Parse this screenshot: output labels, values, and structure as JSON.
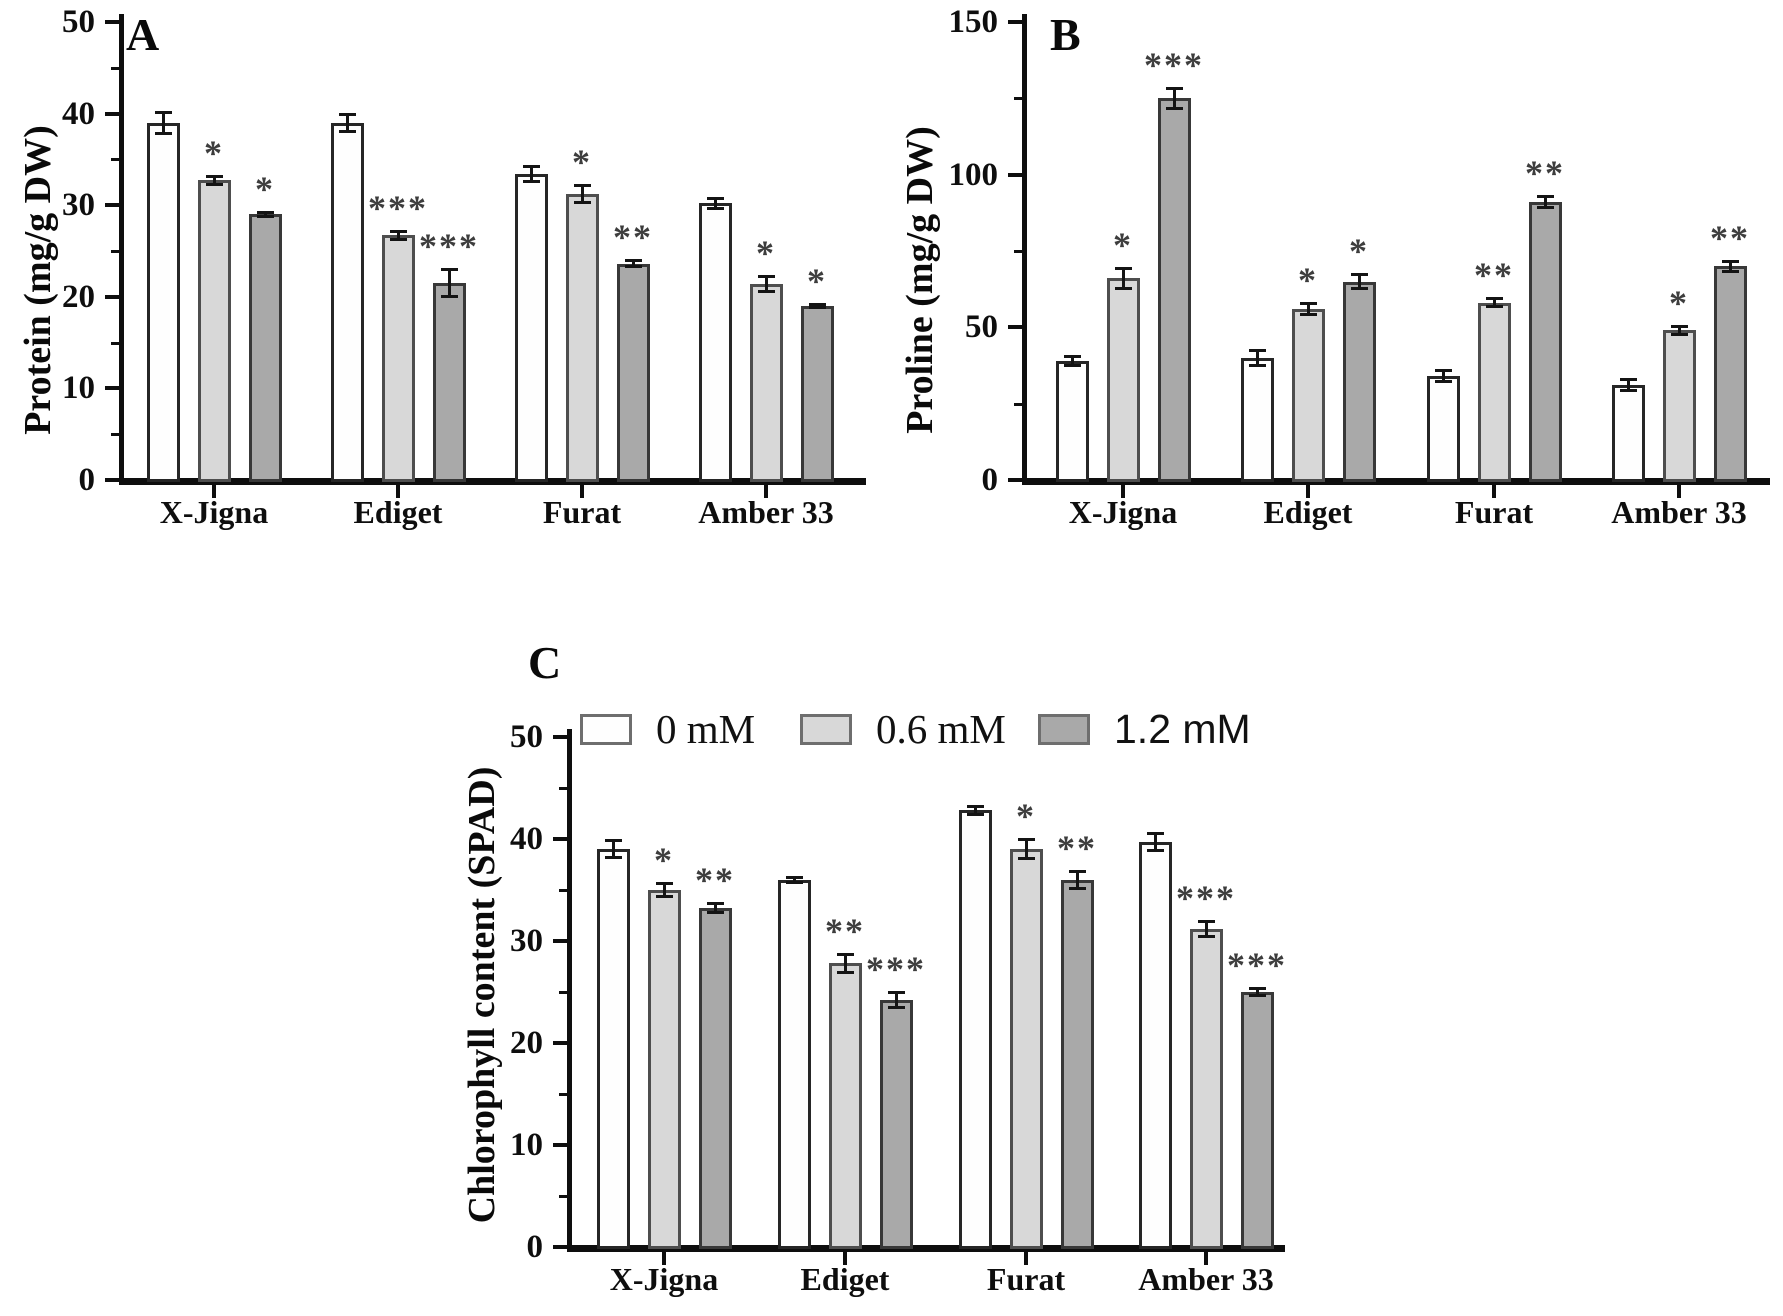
{
  "colors": {
    "bar_0mM": "#fefefe",
    "bar_06mM": "#d8d8d8",
    "bar_12mM": "#a9a9a9",
    "bar_border": "#2b2b2b",
    "axis": "#0e0e0e",
    "stars": "#3d3d3d"
  },
  "legend": {
    "items": [
      {
        "label": "0 mM",
        "color": "#fefefe"
      },
      {
        "label": "0.6 mM",
        "color": "#d8d8d8"
      },
      {
        "label": "1.2 mM",
        "color": "#a9a9a9"
      }
    ]
  },
  "chart_data": [
    {
      "panel_label": "A",
      "type": "bar",
      "ylabel": "Protein (mg/g DW)",
      "ylim": [
        0,
        50
      ],
      "yticks": [
        0,
        10,
        20,
        30,
        40,
        50
      ],
      "minor_tick_step": 5,
      "grid": false,
      "legend_position": "none",
      "categories": [
        "X-Jigna",
        "Ediget",
        "Furat",
        "Amber 33"
      ],
      "series": [
        {
          "name": "0 mM",
          "values": [
            39.0,
            39.0,
            33.4,
            30.2
          ],
          "errors": [
            1.2,
            1.0,
            0.9,
            0.6
          ],
          "significance": [
            "",
            "",
            "",
            ""
          ]
        },
        {
          "name": "0.6 mM",
          "values": [
            32.7,
            26.7,
            31.2,
            21.4
          ],
          "errors": [
            0.5,
            0.5,
            1.0,
            0.9
          ],
          "significance": [
            "*",
            "***",
            "*",
            "*"
          ]
        },
        {
          "name": "1.2 mM",
          "values": [
            29.0,
            21.5,
            23.6,
            19.0
          ],
          "errors": [
            0.3,
            1.5,
            0.4,
            0.2
          ],
          "significance": [
            "*",
            "***",
            "**",
            "*"
          ]
        }
      ]
    },
    {
      "panel_label": "B",
      "type": "bar",
      "ylabel": "Proline (mg/g DW)",
      "ylim": [
        0,
        150
      ],
      "yticks": [
        0,
        50,
        100,
        150
      ],
      "minor_tick_step": 25,
      "grid": false,
      "legend_position": "none",
      "categories": [
        "X-Jigna",
        "Ediget",
        "Furat",
        "Amber 33"
      ],
      "series": [
        {
          "name": "0 mM",
          "values": [
            39.0,
            40.0,
            34.0,
            31.0
          ],
          "errors": [
            1.5,
            2.5,
            2.0,
            2.0
          ],
          "significance": [
            "",
            "",
            "",
            ""
          ]
        },
        {
          "name": "0.6 mM",
          "values": [
            66.0,
            56.0,
            58.0,
            49.0
          ],
          "errors": [
            3.5,
            2.0,
            1.5,
            1.5
          ],
          "significance": [
            "*",
            "*",
            "**",
            "*"
          ]
        },
        {
          "name": "1.2 mM",
          "values": [
            125.0,
            65.0,
            91.0,
            70.0
          ],
          "errors": [
            3.5,
            2.5,
            2.0,
            1.8
          ],
          "significance": [
            "***",
            "*",
            "**",
            "**"
          ]
        }
      ]
    },
    {
      "panel_label": "C",
      "type": "bar",
      "ylabel": "Chlorophyll content (SPAD)",
      "ylim": [
        0,
        50
      ],
      "yticks": [
        0,
        10,
        20,
        30,
        40,
        50
      ],
      "minor_tick_step": 5,
      "grid": false,
      "legend_position": "top",
      "categories": [
        "X-Jigna",
        "Ediget",
        "Furat",
        "Amber 33"
      ],
      "series": [
        {
          "name": "0 mM",
          "values": [
            39.0,
            36.0,
            42.8,
            39.7
          ],
          "errors": [
            0.9,
            0.3,
            0.4,
            0.9
          ],
          "significance": [
            "",
            "",
            "",
            ""
          ]
        },
        {
          "name": "0.6 mM",
          "values": [
            35.0,
            27.8,
            39.0,
            31.2
          ],
          "errors": [
            0.7,
            0.9,
            1.0,
            0.8
          ],
          "significance": [
            "*",
            "**",
            "*",
            "***"
          ]
        },
        {
          "name": "1.2 mM",
          "values": [
            33.2,
            24.2,
            36.0,
            25.0
          ],
          "errors": [
            0.5,
            0.8,
            0.9,
            0.4
          ],
          "significance": [
            "**",
            "***",
            "**",
            "***"
          ]
        }
      ]
    }
  ]
}
